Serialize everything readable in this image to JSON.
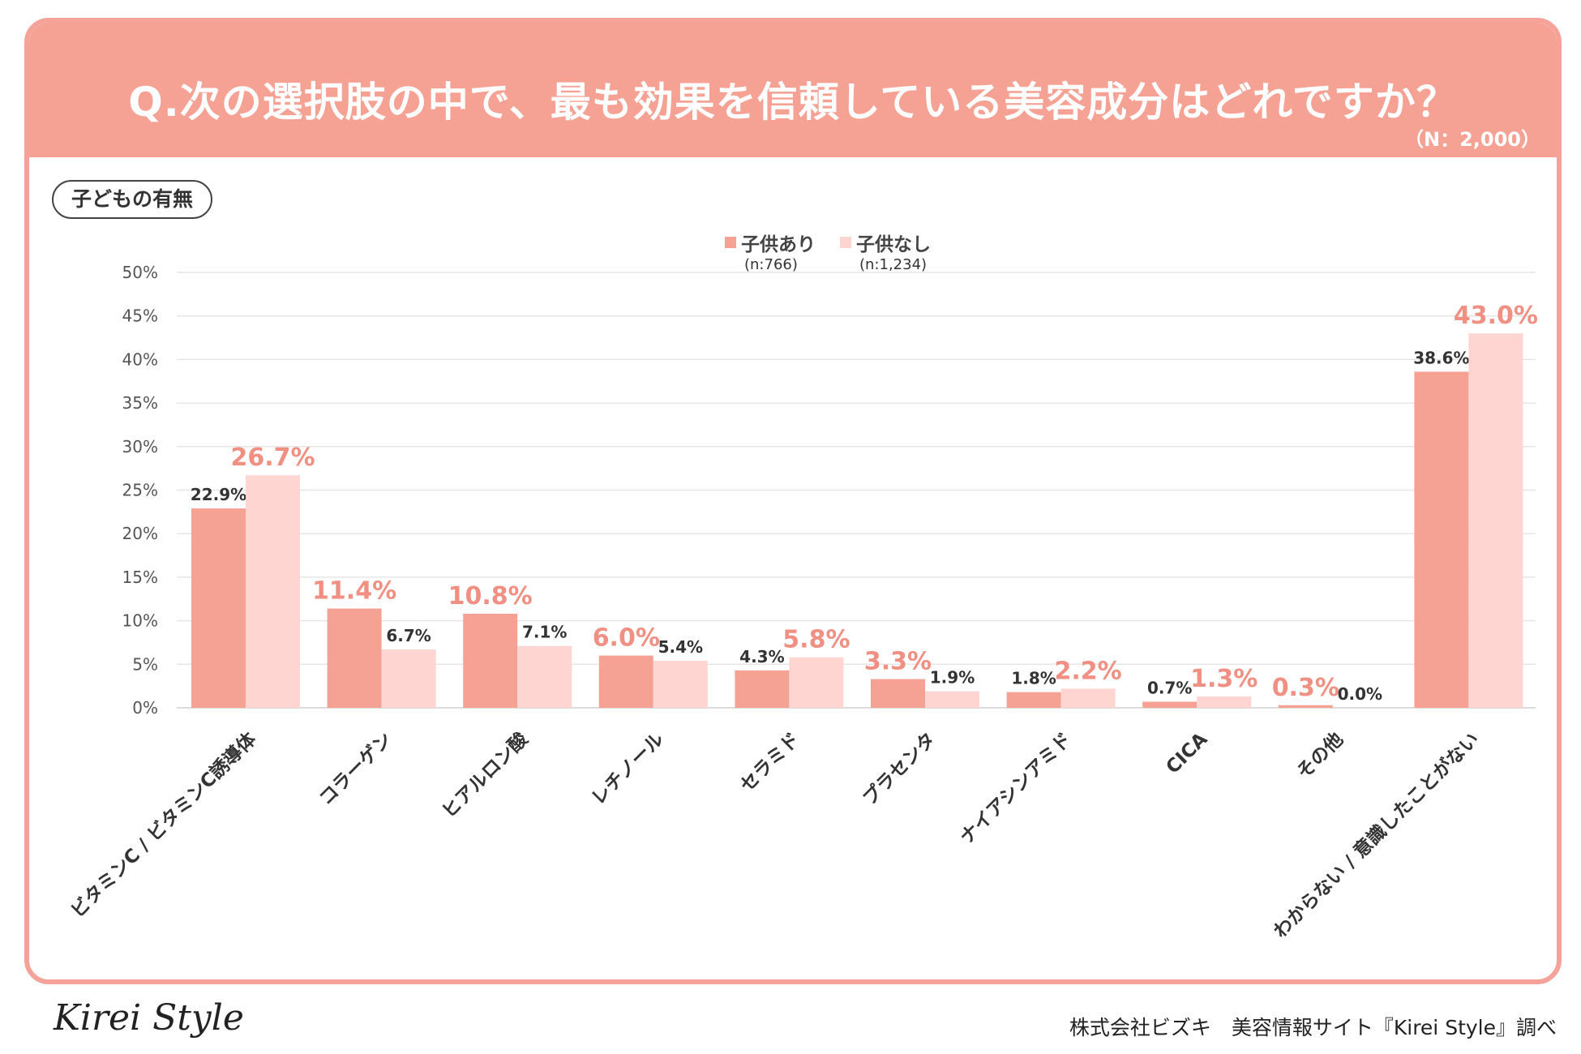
{
  "header": {
    "title": "Q.次の選択肢の中で、最も効果を信頼している美容成分はどれですか？",
    "sample_size": "（N：2,000）"
  },
  "filter_tag": "子どもの有無",
  "legend": [
    {
      "label": "子供あり",
      "n": "(n:766)",
      "color": "#f5a295"
    },
    {
      "label": "子供なし",
      "n": "(n:1,234)",
      "color": "#fed5d1"
    }
  ],
  "chart_data": {
    "type": "bar",
    "title": "Q.次の選択肢の中で、最も効果を信頼している美容成分はどれですか？",
    "categories": [
      "ビタミンC / ビタミンC誘導体",
      "コラーゲン",
      "ヒアルロン酸",
      "レチノール",
      "セラミド",
      "プラセンタ",
      "ナイアシンアミド",
      "CICA",
      "その他",
      "わからない / 意識したことがない"
    ],
    "series": [
      {
        "name": "子供あり",
        "values": [
          22.9,
          11.4,
          10.8,
          6.0,
          4.3,
          3.3,
          1.8,
          0.7,
          0.3,
          38.6
        ],
        "labels": [
          "22.9%",
          "11.4%",
          "10.8%",
          "6.0%",
          "4.3%",
          "3.3%",
          "1.8%",
          "0.7%",
          "0.3%",
          "38.6%"
        ]
      },
      {
        "name": "子供なし",
        "values": [
          26.7,
          6.7,
          7.1,
          5.4,
          5.8,
          1.9,
          2.2,
          1.3,
          0.0,
          43.0
        ],
        "labels": [
          "26.7%",
          "6.7%",
          "7.1%",
          "5.4%",
          "5.8%",
          "1.9%",
          "2.2%",
          "1.3%",
          "0.0%",
          "43.0%"
        ]
      }
    ],
    "highlight": [
      1,
      0,
      0,
      0,
      1,
      0,
      1,
      1,
      0,
      1
    ],
    "ylim": [
      0,
      50
    ],
    "yticks": [
      "0%",
      "5%",
      "10%",
      "15%",
      "20%",
      "25%",
      "30%",
      "35%",
      "40%",
      "45%",
      "50%"
    ],
    "colors": {
      "series1": "#f5a295",
      "series2": "#fed5d1",
      "highlight_text": "#f08f82",
      "plain_text": "#333333",
      "grid": "#e6e6e6"
    }
  },
  "footer": {
    "logo": "Kirei Style",
    "credit": "株式会社ビズキ　美容情報サイト『Kirei Style』調べ"
  }
}
